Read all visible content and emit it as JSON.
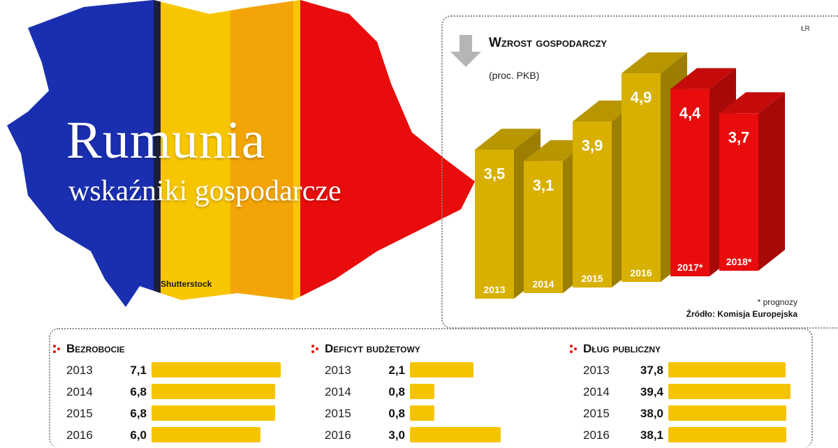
{
  "header": {
    "title": "Rumunia",
    "subtitle": "wskaźniki gospodarcze",
    "photo_credit": "Shutterstock",
    "flag_colors": [
      "#1a2fb0",
      "#f7c600",
      "#e80c0c"
    ]
  },
  "author_initials": "ŁR",
  "chart_data": [
    {
      "type": "bar",
      "title": "Wzrost gospodarczy",
      "subtitle": "(proc. PKB)",
      "categories": [
        "2013",
        "2014",
        "2015",
        "2016",
        "2017*",
        "2018*"
      ],
      "values": [
        3.5,
        3.1,
        3.9,
        4.9,
        4.4,
        3.7
      ],
      "value_labels": [
        "3,5",
        "3,1",
        "3,9",
        "4,9",
        "4,4",
        "3,7"
      ],
      "forecast": [
        false,
        false,
        false,
        false,
        true,
        true
      ],
      "colors": {
        "actual": "#d8b000",
        "forecast": "#e80c0c"
      },
      "footnote": "* prognozy",
      "source": "Źródło: Komisja Europejska"
    },
    {
      "type": "bar",
      "title": "Bezrobocie",
      "categories": [
        "2013",
        "2014",
        "2015",
        "2016"
      ],
      "values": [
        7.1,
        6.8,
        6.8,
        6.0
      ],
      "value_labels": [
        "7,1",
        "6,8",
        "6,8",
        "6,0"
      ]
    },
    {
      "type": "bar",
      "title": "Deficyt budżetowy",
      "categories": [
        "2013",
        "2014",
        "2015",
        "2016"
      ],
      "values": [
        2.1,
        0.8,
        0.8,
        3.0
      ],
      "value_labels": [
        "2,1",
        "0,8",
        "0,8",
        "3,0"
      ]
    },
    {
      "type": "bar",
      "title": "Dług publiczny",
      "categories": [
        "2013",
        "2014",
        "2015",
        "2016"
      ],
      "values": [
        37.8,
        39.4,
        38.0,
        38.1
      ],
      "value_labels": [
        "37,8",
        "39,4",
        "38,0",
        "38,1"
      ]
    }
  ],
  "bar_color": "#f5c400",
  "bullet_color": "#e80c0c"
}
